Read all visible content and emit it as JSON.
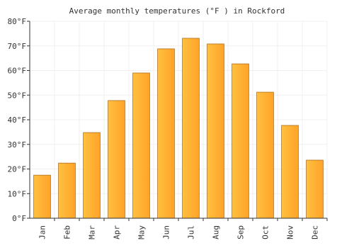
{
  "chart_data": {
    "type": "bar",
    "title": "Average monthly temperatures (°F ) in Rockford",
    "categories": [
      "Jan",
      "Feb",
      "Mar",
      "Apr",
      "May",
      "Jun",
      "Jul",
      "Aug",
      "Sep",
      "Oct",
      "Nov",
      "Dec"
    ],
    "values": [
      17.5,
      22.4,
      34.8,
      47.8,
      59,
      68.8,
      73.1,
      70.8,
      62.7,
      51.2,
      37.7,
      23.6
    ],
    "color": "#ffa328",
    "ylim": [
      0,
      80
    ],
    "yticks": [
      {
        "value": 0,
        "label": "0°F"
      },
      {
        "value": 10,
        "label": "10°F"
      },
      {
        "value": 20,
        "label": "20°F"
      },
      {
        "value": 30,
        "label": "30°F"
      },
      {
        "value": 40,
        "label": "40°F"
      },
      {
        "value": 50,
        "label": "50°F"
      },
      {
        "value": 60,
        "label": "60°F"
      },
      {
        "value": 70,
        "label": "70°F"
      },
      {
        "value": 80,
        "label": "80°F"
      }
    ],
    "grid": true
  }
}
